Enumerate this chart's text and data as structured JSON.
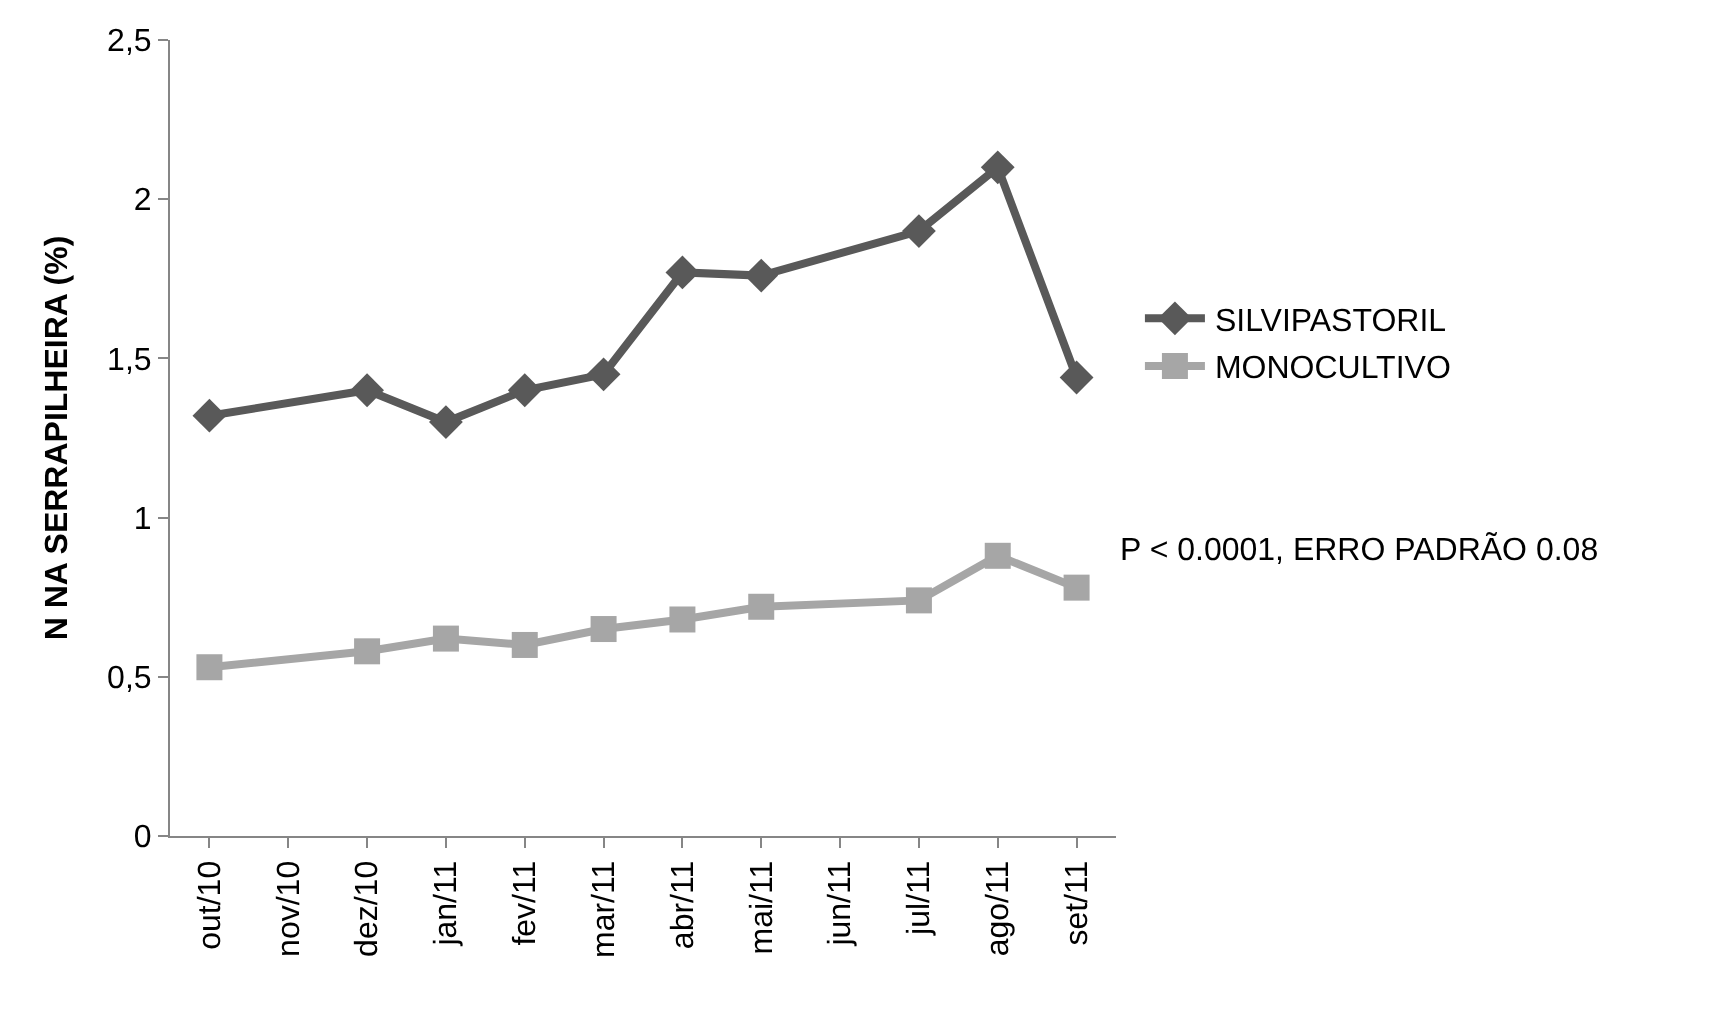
{
  "chart_data": {
    "type": "line",
    "ylabel": "N NA SERRAPILHEIRA (%)",
    "categories": [
      "out/10",
      "nov/10",
      "dez/10",
      "jan/11",
      "fev/11",
      "mar/11",
      "abr/11",
      "mai/11",
      "jun/11",
      "jul/11",
      "ago/11",
      "set/11"
    ],
    "series": [
      {
        "name": "SILVIPASTORIL",
        "color": "#595959",
        "marker": "diamond",
        "values": [
          1.32,
          null,
          1.4,
          1.3,
          1.4,
          1.45,
          1.77,
          1.76,
          null,
          1.9,
          2.1,
          1.44
        ]
      },
      {
        "name": "MONOCULTIVO",
        "color": "#a6a6a6",
        "marker": "square",
        "values": [
          0.53,
          null,
          0.58,
          0.62,
          0.6,
          0.65,
          0.68,
          0.72,
          null,
          0.74,
          0.88,
          0.78
        ]
      }
    ],
    "ylim": [
      0,
      2.5
    ],
    "yticks": [
      0,
      {
        "value": 0.5,
        "label": "0,5"
      },
      1,
      {
        "value": 1.5,
        "label": "1,5"
      },
      2,
      {
        "value": 2.5,
        "label": "2,5"
      }
    ],
    "annotations": [
      "P < 0.0001, ERRO PADRÃO 0.08"
    ],
    "legend": "right",
    "line_style": "solid"
  }
}
